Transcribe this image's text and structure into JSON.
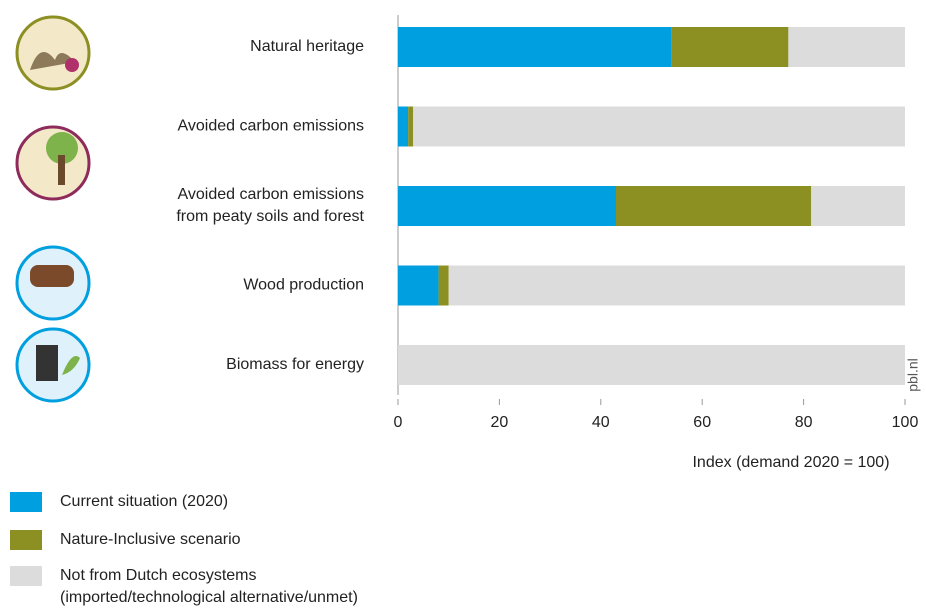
{
  "chart_data": {
    "type": "stacked_barh",
    "categories": [
      "Natural heritage",
      "Avoided carbon emissions",
      "Avoided carbon emissions\nfrom peaty soils and forest",
      "Wood production",
      "Biomass for energy"
    ],
    "series": [
      {
        "name": "Current situation (2020)",
        "color": "#009fe0",
        "values": [
          54,
          2,
          43,
          8,
          0
        ]
      },
      {
        "name": "Nature-Inclusive scenario",
        "color": "#8c9023",
        "values": [
          23,
          1,
          38.5,
          2,
          0
        ]
      },
      {
        "name": "Not from Dutch ecosystems\n(imported/technological alternative/unmet)",
        "color": "#dcdcdc",
        "values": [
          23,
          97,
          18.5,
          90,
          100
        ]
      }
    ],
    "xlim": [
      0,
      100
    ],
    "xticks": [
      0,
      20,
      40,
      60,
      80,
      100
    ],
    "xlabel": "Index (demand 2020 = 100)",
    "watermark": "pbl.nl"
  }
}
